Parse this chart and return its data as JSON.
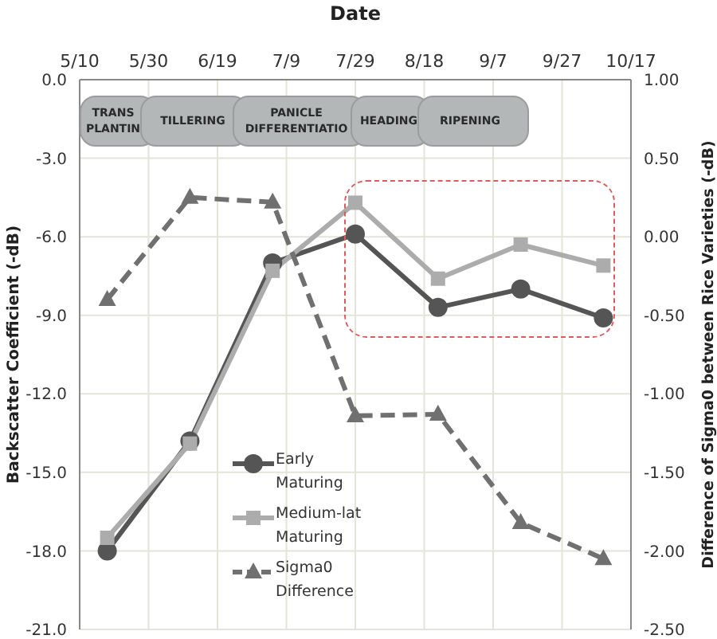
{
  "chart_data": {
    "type": "line",
    "xlabel": "Date",
    "ylabel": "Backscatter Coefficient (-dB)",
    "y2label": "Difference of Sigma0 between Rice Varieties (-dB)",
    "x": [
      "--05-18",
      "--06-11",
      "--07-05",
      "--07-29",
      "--08-22",
      "--09-15",
      "--10-09"
    ],
    "xlim": [
      "--05-10",
      "--10-17"
    ],
    "xticks": [
      {
        "value": "--05-10",
        "label": "5/10"
      },
      {
        "value": "--05-30",
        "label": "5/30"
      },
      {
        "value": "--06-19",
        "label": "6/19"
      },
      {
        "value": "--07-09",
        "label": "7/9"
      },
      {
        "value": "--07-29",
        "label": "7/29"
      },
      {
        "value": "--08-18",
        "label": "8/18"
      },
      {
        "value": "--09-07",
        "label": "9/7"
      },
      {
        "value": "--09-27",
        "label": "9/27"
      },
      {
        "value": "--10-17",
        "label": "10/17"
      }
    ],
    "ylim": [
      -21,
      0
    ],
    "yticks": [
      {
        "value": 0,
        "label": "0.0"
      },
      {
        "value": -3,
        "label": "-3.0"
      },
      {
        "value": -6,
        "label": "-6.0"
      },
      {
        "value": -9,
        "label": "-9.0"
      },
      {
        "value": -12,
        "label": "-12.0"
      },
      {
        "value": -15,
        "label": "-15.0"
      },
      {
        "value": -18,
        "label": "-18.0"
      },
      {
        "value": -21,
        "label": "-21.0"
      }
    ],
    "y2lim": [
      -2.5,
      1
    ],
    "y2ticks": [
      {
        "value": 1,
        "label": "1.00"
      },
      {
        "value": 0.5,
        "label": "0.50"
      },
      {
        "value": 0,
        "label": "0.00"
      },
      {
        "value": -0.5,
        "label": "-0.50"
      },
      {
        "value": -1,
        "label": "-1.00"
      },
      {
        "value": -1.5,
        "label": "-1.50"
      },
      {
        "value": -2,
        "label": "-2.00"
      },
      {
        "value": -2.5,
        "label": "-2.50"
      }
    ],
    "series": [
      {
        "name": "Early Maturing",
        "color": "#555555",
        "marker": "circle",
        "values": [
          -18.0,
          -13.8,
          -7.0,
          -5.9,
          -8.7,
          -8.0,
          -9.1
        ]
      },
      {
        "name": "Medium-lat Maturing",
        "color": "#acacac",
        "marker": "square",
        "values": [
          -17.5,
          -13.9,
          -7.3,
          -4.7,
          -7.6,
          -6.3,
          -7.1
        ]
      },
      {
        "name": "Sigma0 Difference",
        "color": "#707070",
        "marker": "triangle",
        "line_style": "dashed",
        "axis": "y2",
        "values": [
          -0.4,
          0.25,
          0.22,
          -1.14,
          -1.13,
          -1.82,
          -2.05
        ]
      }
    ],
    "annotations": [
      "TRANS PLANTIN",
      "TILLERING",
      "PANICLE DIFFERENTIATIO",
      "HEADING",
      "RIPENING"
    ],
    "grid": true,
    "legend": "bottom left"
  }
}
